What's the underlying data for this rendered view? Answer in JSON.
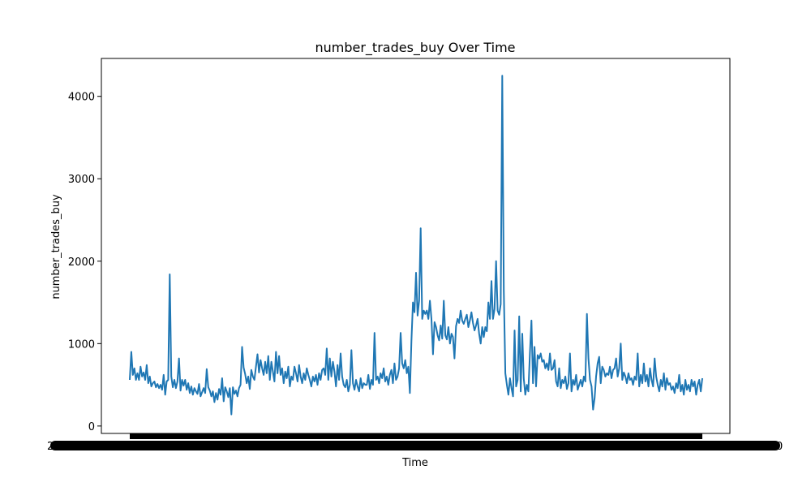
{
  "chart_data": {
    "type": "line",
    "title": "number_trades_buy Over Time",
    "xlabel": "Time",
    "ylabel": "number_trades_buy",
    "ylim": [
      -90,
      4460
    ],
    "yticks": [
      0,
      1000,
      2000,
      3000,
      4000
    ],
    "x_tick_labels_note": "dense overlapping timestamp labels rendered as a solid black band",
    "grid": false,
    "series_color": "#1f77b4",
    "series": [
      {
        "values": [
          560,
          900,
          620,
          700,
          560,
          640,
          560,
          720,
          600,
          650,
          560,
          740,
          520,
          600,
          480,
          520,
          540,
          470,
          510,
          460,
          500,
          440,
          620,
          380,
          540,
          560,
          1840,
          600,
          470,
          560,
          460,
          540,
          820,
          430,
          560,
          490,
          560,
          440,
          520,
          400,
          480,
          380,
          460,
          420,
          390,
          510,
          360,
          410,
          460,
          400,
          690,
          470,
          430,
          360,
          420,
          290,
          400,
          320,
          450,
          380,
          580,
          300,
          470,
          420,
          350,
          460,
          140,
          470,
          390,
          430,
          360,
          460,
          500,
          960,
          710,
          630,
          520,
          600,
          450,
          680,
          600,
          560,
          720,
          870,
          650,
          800,
          700,
          620,
          780,
          640,
          850,
          560,
          780,
          660,
          540,
          900,
          640,
          850,
          620,
          700,
          520,
          660,
          580,
          720,
          480,
          600,
          560,
          720,
          640,
          540,
          740,
          600,
          520,
          640,
          560,
          700,
          620,
          560,
          480,
          600,
          540,
          620,
          500,
          640,
          560,
          680,
          700,
          620,
          940,
          560,
          820,
          600,
          780,
          660,
          480,
          740,
          560,
          880,
          600,
          500,
          470,
          560,
          420,
          500,
          920,
          520,
          440,
          560,
          480,
          420,
          580,
          460,
          520,
          500,
          500,
          620,
          450,
          560,
          500,
          1130,
          560,
          600,
          520,
          640,
          580,
          700,
          540,
          600,
          500,
          620,
          680,
          520,
          760,
          560,
          600,
          700,
          1130,
          760,
          700,
          800,
          640,
          720,
          400,
          1030,
          1500,
          1380,
          1860,
          1340,
          1520,
          2400,
          1300,
          1400,
          1360,
          1400,
          1300,
          1520,
          1300,
          870,
          1260,
          1200,
          1100,
          1040,
          1220,
          1060,
          1520,
          1100,
          1050,
          1200,
          1000,
          1120,
          1080,
          820,
          1210,
          1300,
          1250,
          1400,
          1280,
          1240,
          1300,
          1350,
          1200,
          1280,
          1380,
          1250,
          1160,
          1220,
          1300,
          1120,
          1000,
          1200,
          1080,
          1200,
          1150,
          1500,
          1300,
          1760,
          1300,
          1420,
          2000,
          1400,
          1350,
          1480,
          4250,
          1650,
          640,
          500,
          380,
          580,
          460,
          360,
          1160,
          480,
          560,
          1330,
          420,
          1120,
          580,
          380,
          500,
          420,
          880,
          1280,
          520,
          960,
          480,
          860,
          820,
          880,
          780,
          800,
          700,
          760,
          680,
          880,
          680,
          700,
          800,
          540,
          480,
          700,
          460,
          560,
          520,
          600,
          450,
          520,
          880,
          420,
          560,
          500,
          620,
          440,
          500,
          560,
          480,
          600,
          540,
          1360,
          820,
          560,
          480,
          200,
          340,
          600,
          760,
          840,
          520,
          720,
          680,
          600,
          640,
          620,
          720,
          580,
          680,
          700,
          820,
          600,
          700,
          1000,
          560,
          650,
          600,
          520,
          640,
          560,
          580,
          500,
          600,
          560,
          880,
          480,
          620,
          520,
          760,
          540,
          620,
          480,
          700,
          560,
          480,
          820,
          600,
          500,
          420,
          560,
          480,
          640,
          440,
          580,
          500,
          520,
          440,
          480,
          400,
          520,
          460,
          620,
          420,
          500,
          380,
          560,
          440,
          500,
          420,
          560,
          480,
          540,
          380,
          500,
          560,
          420,
          580
        ]
      }
    ]
  }
}
